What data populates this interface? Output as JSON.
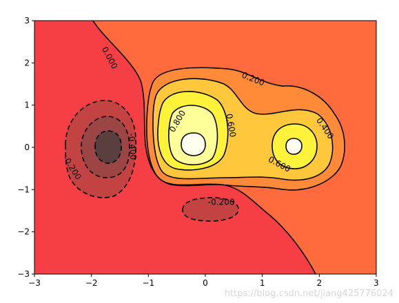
{
  "chart_data": {
    "type": "contour",
    "title": "",
    "xlabel": "",
    "ylabel": "",
    "xlim": [
      -3,
      3
    ],
    "ylim": [
      -3,
      3
    ],
    "x_ticks": [
      "−3",
      "−2",
      "−1",
      "0",
      "1",
      "2",
      "3"
    ],
    "y_ticks": [
      "−3",
      "−2",
      "−1",
      "0",
      "1",
      "2",
      "3"
    ],
    "colormap": "hot",
    "filled": true,
    "contour_levels": [
      -0.4,
      -0.2,
      0.0,
      0.2,
      0.4,
      0.6,
      0.8
    ],
    "contour_labels": [
      {
        "text": "0.000",
        "x": -1.68,
        "y": 2.12,
        "rotate": 62
      },
      {
        "text": "0.200",
        "x": 0.84,
        "y": 1.62,
        "rotate": 22
      },
      {
        "text": "0.400",
        "x": 2.1,
        "y": 0.45,
        "rotate": 55
      },
      {
        "text": "0.600",
        "x": 0.45,
        "y": 0.52,
        "rotate": 80
      },
      {
        "text": "0.600",
        "x": 1.3,
        "y": -0.4,
        "rotate": 28
      },
      {
        "text": "0.800",
        "x": -0.49,
        "y": 0.62,
        "rotate": -60
      },
      {
        "text": "-0.400",
        "x": -1.28,
        "y": 0.02,
        "rotate": 86
      },
      {
        "text": "-0.200",
        "x": -2.34,
        "y": -0.48,
        "rotate": 58
      },
      {
        "text": "-0.200",
        "x": 0.28,
        "y": -1.3,
        "rotate": 0
      }
    ],
    "grid": false,
    "legend": "none"
  },
  "watermark": "https://blog.csdn.net/jiang425776024",
  "colors": {
    "neg_dark": "#5a3f3f",
    "neg_mid": "#9b4545",
    "neg_light": "#c34343",
    "base": "#f63f44",
    "level0": "#ff6b3d",
    "level02": "#ff8a38",
    "level04": "#ffc83c",
    "level06": "#fff23a",
    "level08": "#ffff9a",
    "peak": "#fffff0"
  }
}
